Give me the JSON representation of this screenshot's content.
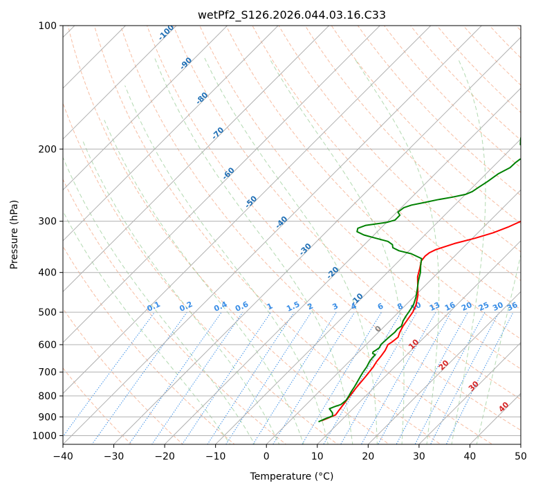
{
  "chart_data": {
    "type": "line",
    "title": "wetPf2_S126.2026.044.03.16.C33",
    "xlabel": "Temperature (°C)",
    "ylabel": "Pressure (hPa)",
    "xlim": [
      -40,
      50
    ],
    "ylim": [
      1050,
      100
    ],
    "y_scale": "log",
    "grid": true,
    "xticks": [
      "−40",
      "−30",
      "−20",
      "−10",
      "0",
      "10",
      "20",
      "30",
      "40",
      "50"
    ],
    "yticks": [
      "1000",
      "900",
      "800",
      "700",
      "600",
      "500",
      "400",
      "300",
      "200",
      "100"
    ],
    "series": [
      {
        "color": "#ff0000",
        "points": [
          [
            6.2,
            920
          ],
          [
            7,
            905
          ],
          [
            7.8,
            890
          ],
          [
            7.6,
            870
          ],
          [
            7.3,
            840
          ],
          [
            7,
            810
          ],
          [
            6.9,
            800
          ],
          [
            6.5,
            760
          ],
          [
            6.2,
            720
          ],
          [
            5.8,
            680
          ],
          [
            5.4,
            660
          ],
          [
            5.2,
            640
          ],
          [
            4.9,
            620
          ],
          [
            4.3,
            600
          ],
          [
            4.6,
            590
          ],
          [
            4.8,
            575
          ],
          [
            4.2,
            560
          ],
          [
            3.6,
            540
          ],
          [
            3.2,
            520
          ],
          [
            2.8,
            500
          ],
          [
            2,
            480
          ],
          [
            0.5,
            455
          ],
          [
            -1.5,
            430
          ],
          [
            -3.2,
            410
          ],
          [
            -4.5,
            390
          ],
          [
            -5.6,
            375
          ],
          [
            -5.8,
            365
          ],
          [
            -5.6,
            358
          ],
          [
            -5,
            352
          ],
          [
            -2.5,
            340
          ],
          [
            0.5,
            330
          ],
          [
            3,
            320
          ],
          [
            4.8,
            310
          ],
          [
            6.2,
            300
          ],
          [
            8,
            290
          ],
          [
            10,
            280
          ],
          [
            12,
            270
          ],
          [
            13.8,
            260
          ],
          [
            15.5,
            250
          ],
          [
            17.2,
            240
          ],
          [
            18.8,
            230
          ],
          [
            20.3,
            220
          ],
          [
            21.8,
            210
          ],
          [
            23.4,
            200
          ],
          [
            25,
            190
          ],
          [
            27,
            180
          ],
          [
            29,
            170
          ],
          [
            31,
            160
          ],
          [
            32.6,
            150
          ],
          [
            34.2,
            140
          ],
          [
            35.5,
            130
          ],
          [
            36.5,
            122
          ],
          [
            37.5,
            115
          ],
          [
            38.5,
            108
          ],
          [
            39.5,
            104
          ],
          [
            40.5,
            100
          ]
        ]
      },
      {
        "color": "#008000",
        "points": [
          [
            5.8,
            925
          ],
          [
            6.5,
            910
          ],
          [
            7.4,
            895
          ],
          [
            6.8,
            880
          ],
          [
            5.4,
            860
          ],
          [
            6,
            850
          ],
          [
            6.8,
            840
          ],
          [
            7,
            820
          ],
          [
            6.7,
            800
          ],
          [
            6.3,
            780
          ],
          [
            6,
            760
          ],
          [
            5.6,
            740
          ],
          [
            5.2,
            720
          ],
          [
            4.8,
            700
          ],
          [
            4.5,
            680
          ],
          [
            4,
            660
          ],
          [
            3.8,
            645
          ],
          [
            3.8,
            635
          ],
          [
            3,
            630
          ],
          [
            2.8,
            625
          ],
          [
            3,
            620
          ],
          [
            3.2,
            610
          ],
          [
            2.9,
            600
          ],
          [
            3,
            580
          ],
          [
            3.1,
            570
          ],
          [
            3.2,
            560
          ],
          [
            3.1,
            550
          ],
          [
            3.3,
            540
          ],
          [
            2.6,
            525
          ],
          [
            2.2,
            510
          ],
          [
            2,
            500
          ],
          [
            1.5,
            480
          ],
          [
            0.5,
            460
          ],
          [
            -0.8,
            440
          ],
          [
            -2.2,
            420
          ],
          [
            -3.5,
            400
          ],
          [
            -4.8,
            385
          ],
          [
            -6,
            370
          ],
          [
            -9,
            360
          ],
          [
            -12,
            354
          ],
          [
            -13.8,
            348
          ],
          [
            -14.5,
            342
          ],
          [
            -16,
            336
          ],
          [
            -19,
            330
          ],
          [
            -22,
            324
          ],
          [
            -24,
            318
          ],
          [
            -24.5,
            312
          ],
          [
            -23.5,
            307
          ],
          [
            -20,
            302
          ],
          [
            -18.8,
            298
          ],
          [
            -18.8,
            290
          ],
          [
            -19.8,
            285
          ],
          [
            -19.5,
            278
          ],
          [
            -18.5,
            274
          ],
          [
            -16.5,
            270
          ],
          [
            -14.5,
            266
          ],
          [
            -12,
            262
          ],
          [
            -10,
            258
          ],
          [
            -9.2,
            254
          ],
          [
            -8.8,
            248
          ],
          [
            -8.2,
            240
          ],
          [
            -7.6,
            230
          ],
          [
            -6.5,
            222
          ],
          [
            -6.4,
            216
          ],
          [
            -6.2,
            212
          ],
          [
            -5.5,
            208
          ],
          [
            -5.8,
            204
          ],
          [
            -7,
            200
          ],
          [
            -9,
            195
          ],
          [
            -10.2,
            188
          ],
          [
            -11,
            180
          ],
          [
            -11.3,
            170
          ],
          [
            -11.3,
            160
          ],
          [
            -11,
            150
          ],
          [
            -10.8,
            145
          ],
          [
            -9.8,
            140
          ],
          [
            -8.5,
            135
          ],
          [
            -7,
            130
          ],
          [
            -6.2,
            127
          ],
          [
            -5,
            124
          ],
          [
            -3,
            120
          ],
          [
            -1,
            116
          ],
          [
            -0.3,
            113
          ],
          [
            0.5,
            110
          ],
          [
            1.5,
            105
          ],
          [
            1.8,
            102
          ],
          [
            1.8,
            100
          ]
        ]
      }
    ],
    "dry_adiabat_labels": [
      "-100",
      "-90",
      "-80",
      "-70",
      "-60",
      "-50",
      "-40",
      "-30",
      "-20",
      "-10",
      "0",
      "10",
      "20",
      "30",
      "40"
    ],
    "mixing_ratio_labels": [
      "0.1",
      "0.2",
      "0.4",
      "0.6",
      "1",
      "1.5",
      "2",
      "3",
      "4",
      "6",
      "8",
      "10",
      "13",
      "16",
      "20",
      "25",
      "30",
      "36"
    ],
    "colors": {
      "temperature": "#ff0000",
      "dewpoint": "#008000",
      "grid": "#b0b0b0",
      "dry_adiabat": "#f4a582",
      "moist_adiabat": "#7fbf7b",
      "mixing_ratio": "#3a8ee6",
      "isotherm_label": "#1f6fb5",
      "warm_label": "#d62728"
    }
  }
}
